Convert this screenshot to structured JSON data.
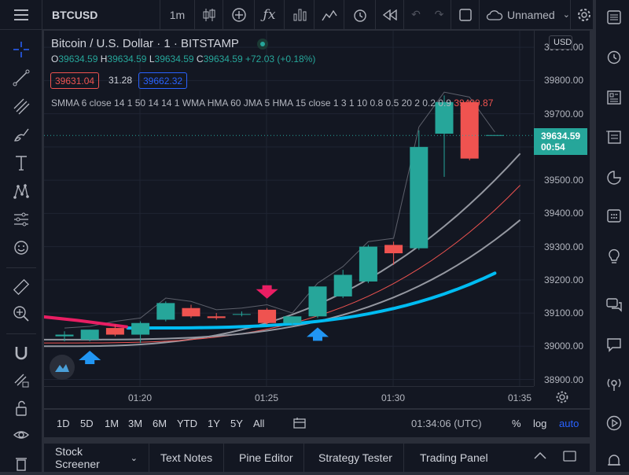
{
  "toolbar": {
    "symbol": "BTCUSD",
    "interval": "1m",
    "layout_name": "Unnamed"
  },
  "legend": {
    "title": "Bitcoin / U.S. Dollar · 1 · BITSTAMP",
    "o_label": "O",
    "o": "39634.59",
    "h_label": "H",
    "h": "39634.59",
    "l_label": "L",
    "l": "39634.59",
    "c_label": "C",
    "c": "39634.59",
    "change": "+72.03 (+0.18%)",
    "bid": "39631.04",
    "spread": "31.28",
    "ask": "39662.32",
    "indicator": "SMMA 6 close 14 1 50 14 14 1 WMA HMA 60 JMA 5 HMA 15 close 1 3 1 10 0.8 0.5 20 2 0.2 0.9",
    "indicator_value": "39409.87"
  },
  "price_axis": {
    "currency": "USD",
    "labels": [
      "39900.00",
      "39800.00",
      "39700.00",
      "39600.00",
      "39500.00",
      "39400.00",
      "39300.00",
      "39200.00",
      "39100.00",
      "39000.00",
      "38900.00"
    ],
    "current_price": "39634.59",
    "countdown": "00:54"
  },
  "time_axis": {
    "labels": [
      "01:20",
      "01:25",
      "01:30",
      "01:35"
    ]
  },
  "range_bar": {
    "ranges": [
      "1D",
      "5D",
      "1M",
      "3M",
      "6M",
      "YTD",
      "1Y",
      "5Y",
      "All"
    ],
    "clock": "01:34:06 (UTC)",
    "percent": "%",
    "log": "log",
    "auto": "auto"
  },
  "bottom_tabs": [
    "Stock Screener",
    "Text Notes",
    "Pine Editor",
    "Strategy Tester",
    "Trading Panel"
  ],
  "colors": {
    "up": "#26a69a",
    "down": "#ef5350",
    "accent": "#2962ff",
    "ma_blue": "#00bcf2"
  },
  "chart_data": {
    "type": "candlestick",
    "ylim": [
      38880,
      39950
    ],
    "candles": [
      {
        "o": 39030,
        "h": 39045,
        "l": 39015,
        "c": 39035
      },
      {
        "o": 39020,
        "h": 39050,
        "l": 39015,
        "c": 39050
      },
      {
        "o": 39055,
        "h": 39065,
        "l": 39030,
        "c": 39035
      },
      {
        "o": 39035,
        "h": 39075,
        "l": 39010,
        "c": 39070
      },
      {
        "o": 39080,
        "h": 39135,
        "l": 39075,
        "c": 39130
      },
      {
        "o": 39115,
        "h": 39125,
        "l": 39085,
        "c": 39090
      },
      {
        "o": 39090,
        "h": 39100,
        "l": 39080,
        "c": 39085
      },
      {
        "o": 39095,
        "h": 39105,
        "l": 39090,
        "c": 39097
      },
      {
        "o": 39110,
        "h": 39115,
        "l": 39065,
        "c": 39070
      },
      {
        "o": 39070,
        "h": 39090,
        "l": 39065,
        "c": 39090
      },
      {
        "o": 39090,
        "h": 39180,
        "l": 39085,
        "c": 39180
      },
      {
        "o": 39150,
        "h": 39230,
        "l": 39145,
        "c": 39215
      },
      {
        "o": 39195,
        "h": 39305,
        "l": 39190,
        "c": 39300
      },
      {
        "o": 39305,
        "h": 39315,
        "l": 39245,
        "c": 39280
      },
      {
        "o": 39295,
        "h": 39650,
        "l": 39290,
        "c": 39600
      },
      {
        "o": 39640,
        "h": 39755,
        "l": 39510,
        "c": 39735
      },
      {
        "o": 39735,
        "h": 39740,
        "l": 39560,
        "c": 39565
      },
      {
        "o": 39634.59,
        "h": 39634.59,
        "l": 39634.59,
        "c": 39634.59
      }
    ],
    "markers": [
      {
        "index": 1,
        "type": "buy"
      },
      {
        "index": 8,
        "type": "sell"
      },
      {
        "index": 10,
        "type": "buy"
      }
    ]
  }
}
